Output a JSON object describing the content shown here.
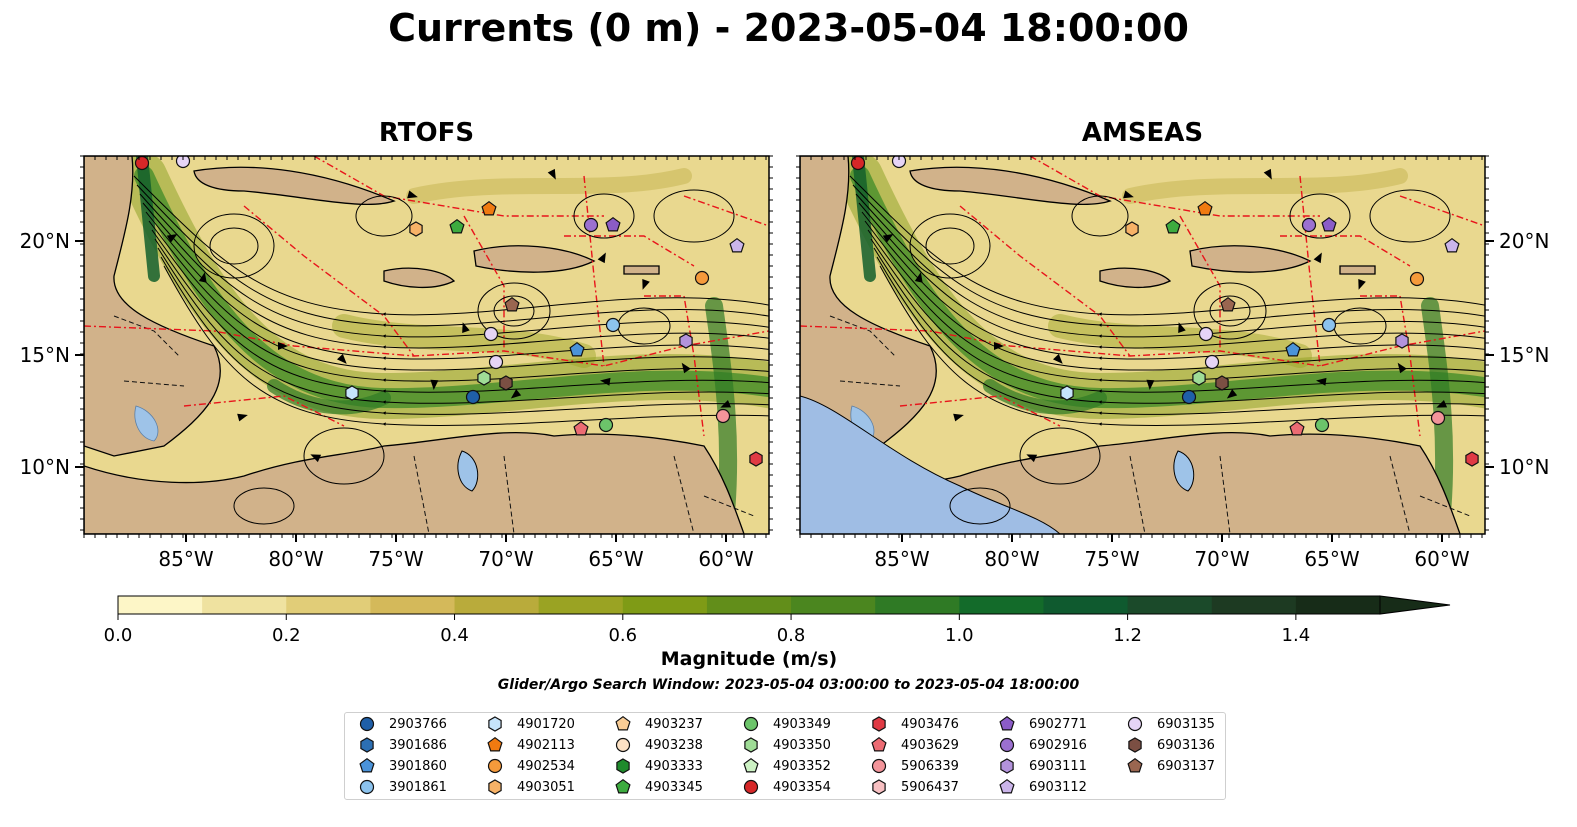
{
  "title": "Currents (0 m) - 2023-05-04 18:00:00",
  "panels": [
    {
      "title": "RTOFS",
      "has_left_labels": true,
      "has_right_labels": false,
      "floats": [
        [
          "4903354",
          142,
          163
        ],
        [
          "6903135",
          183,
          161
        ],
        [
          "4903051",
          416,
          229
        ],
        [
          "4903345",
          457,
          227
        ],
        [
          "4902113",
          489,
          209
        ],
        [
          "6902916",
          591,
          225
        ],
        [
          "6902771",
          613,
          225
        ],
        [
          "6903137",
          512,
          305
        ],
        [
          "6903135",
          491,
          334
        ],
        [
          "3901861",
          613,
          325
        ],
        [
          "4902534",
          702,
          278
        ],
        [
          "6903112",
          737,
          246
        ],
        [
          "3901860",
          577,
          350
        ],
        [
          "6903111",
          686,
          341
        ],
        [
          "6903135",
          496,
          362
        ],
        [
          "4903350",
          484,
          378
        ],
        [
          "6903136",
          506,
          383
        ],
        [
          "4901720",
          352,
          393
        ],
        [
          "2903766",
          473,
          397
        ],
        [
          "4903629",
          581,
          429
        ],
        [
          "4903349",
          606,
          425
        ],
        [
          "5906339",
          723,
          416
        ],
        [
          "4903476",
          756,
          459
        ]
      ]
    },
    {
      "title": "AMSEAS",
      "has_left_labels": false,
      "has_right_labels": true,
      "floats": [
        [
          "4903354",
          858,
          163
        ],
        [
          "6903135",
          899,
          161
        ],
        [
          "4903051",
          1132,
          229
        ],
        [
          "4903345",
          1173,
          227
        ],
        [
          "4902113",
          1205,
          209
        ],
        [
          "6902916",
          1309,
          225
        ],
        [
          "6902771",
          1329,
          225
        ],
        [
          "6903137",
          1228,
          305
        ],
        [
          "6903135",
          1206,
          334
        ],
        [
          "3901861",
          1329,
          325
        ],
        [
          "4902534",
          1417,
          279
        ],
        [
          "6903112",
          1452,
          246
        ],
        [
          "3901860",
          1293,
          350
        ],
        [
          "6903111",
          1402,
          341
        ],
        [
          "6903135",
          1212,
          362
        ],
        [
          "4903350",
          1199,
          378
        ],
        [
          "6903136",
          1222,
          383
        ],
        [
          "4901720",
          1067,
          393
        ],
        [
          "2903766",
          1189,
          397
        ],
        [
          "4903629",
          1297,
          429
        ],
        [
          "4903349",
          1322,
          425
        ],
        [
          "5906339",
          1438,
          418
        ],
        [
          "4903476",
          1472,
          459
        ]
      ]
    }
  ],
  "axes": {
    "lat_ticks": [
      "20°N",
      "15°N",
      "10°N"
    ],
    "lon_ticks": [
      "85°W",
      "80°W",
      "75°W",
      "70°W",
      "65°W",
      "60°W"
    ]
  },
  "colorbar": {
    "label": "Magnitude (m/s)",
    "min": 0.0,
    "max": 1.5,
    "extend": "max",
    "tick_labels": [
      "0.0",
      "0.2",
      "0.4",
      "0.6",
      "0.8",
      "1.0",
      "1.2",
      "1.4"
    ],
    "colors": [
      "#fdf6c7",
      "#efe2a0",
      "#e1cd78",
      "#d4b95a",
      "#b9ab3b",
      "#9aa323",
      "#7f9b16",
      "#628e1a",
      "#4b861f",
      "#2f7a25",
      "#136b2a",
      "#0f5a2f",
      "#1b4a2a",
      "#1d3a22",
      "#172c18"
    ]
  },
  "search_window": "Glider/Argo Search Window: 2023-05-04 03:00:00 to 2023-05-04 18:00:00",
  "legend": [
    {
      "id": "2903766",
      "marker": "circle",
      "color": "#1f5fa8"
    },
    {
      "id": "3901686",
      "marker": "hexagon",
      "color": "#2c6fb3"
    },
    {
      "id": "3901860",
      "marker": "pentagon",
      "color": "#4b93d9"
    },
    {
      "id": "3901861",
      "marker": "circle",
      "color": "#8cc3ee"
    },
    {
      "id": "4901720",
      "marker": "hexagon",
      "color": "#c6e4fb"
    },
    {
      "id": "4902113",
      "marker": "pentagon",
      "color": "#f07a10"
    },
    {
      "id": "4902534",
      "marker": "circle",
      "color": "#f59a3b"
    },
    {
      "id": "4903051",
      "marker": "hexagon",
      "color": "#f7b267"
    },
    {
      "id": "4903237",
      "marker": "pentagon",
      "color": "#f9cd96"
    },
    {
      "id": "4903238",
      "marker": "circle",
      "color": "#fde2c5"
    },
    {
      "id": "4903333",
      "marker": "hexagon",
      "color": "#1f8a2c"
    },
    {
      "id": "4903345",
      "marker": "pentagon",
      "color": "#3dab3f"
    },
    {
      "id": "4903349",
      "marker": "circle",
      "color": "#6cc46a"
    },
    {
      "id": "4903350",
      "marker": "hexagon",
      "color": "#9fdc96"
    },
    {
      "id": "4903352",
      "marker": "pentagon",
      "color": "#cdf2c4"
    },
    {
      "id": "4903354",
      "marker": "circle",
      "color": "#d62728"
    },
    {
      "id": "4903476",
      "marker": "hexagon",
      "color": "#e03a44"
    },
    {
      "id": "4903629",
      "marker": "pentagon",
      "color": "#ec6b73"
    },
    {
      "id": "5906339",
      "marker": "circle",
      "color": "#f3949a"
    },
    {
      "id": "5906437",
      "marker": "hexagon",
      "color": "#f8c0c2"
    },
    {
      "id": "6902771",
      "marker": "pentagon",
      "color": "#8b5cc7"
    },
    {
      "id": "6902916",
      "marker": "circle",
      "color": "#9b70d0"
    },
    {
      "id": "6903111",
      "marker": "hexagon",
      "color": "#b393dc"
    },
    {
      "id": "6903112",
      "marker": "pentagon",
      "color": "#cbb5ea"
    },
    {
      "id": "6903135",
      "marker": "circle",
      "color": "#e6d4f6"
    },
    {
      "id": "6903136",
      "marker": "hexagon",
      "color": "#7b4f43"
    },
    {
      "id": "6903137",
      "marker": "pentagon",
      "color": "#9a6650"
    }
  ]
}
